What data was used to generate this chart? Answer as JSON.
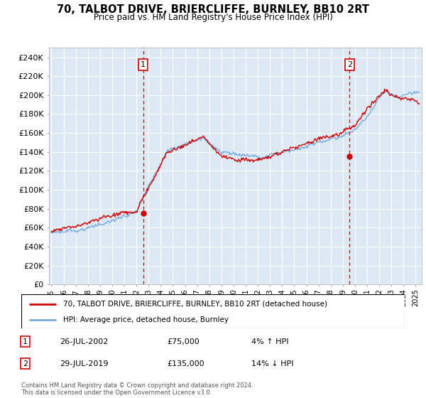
{
  "title": "70, TALBOT DRIVE, BRIERCLIFFE, BURNLEY, BB10 2RT",
  "subtitle": "Price paid vs. HM Land Registry's House Price Index (HPI)",
  "ylabel_ticks": [
    "£0",
    "£20K",
    "£40K",
    "£60K",
    "£80K",
    "£100K",
    "£120K",
    "£140K",
    "£160K",
    "£180K",
    "£200K",
    "£220K",
    "£240K"
  ],
  "ylim": [
    0,
    250000
  ],
  "yticks": [
    0,
    20000,
    40000,
    60000,
    80000,
    100000,
    120000,
    140000,
    160000,
    180000,
    200000,
    220000,
    240000
  ],
  "xlim_start": 1994.8,
  "xlim_end": 2025.5,
  "sale1_date": 2002.56,
  "sale1_price": 75000,
  "sale1_label": "1",
  "sale2_date": 2019.56,
  "sale2_price": 135000,
  "sale2_label": "2",
  "legend_line1": "70, TALBOT DRIVE, BRIERCLIFFE, BURNLEY, BB10 2RT (detached house)",
  "legend_line2": "HPI: Average price, detached house, Burnley",
  "footer": "Contains HM Land Registry data © Crown copyright and database right 2024.\nThis data is licensed under the Open Government Licence v3.0.",
  "hpi_color": "#7aabdc",
  "price_color": "#cc0000",
  "plot_bg": "#dce9f5",
  "grid_color": "#ffffff",
  "sale_marker_color": "#cc0000",
  "dashed_line_color": "#cc0000",
  "ann1_date": "26-JUL-2002",
  "ann1_price": "£75,000",
  "ann1_hpi": "4% ↑ HPI",
  "ann2_date": "29-JUL-2019",
  "ann2_price": "£135,000",
  "ann2_hpi": "14% ↓ HPI"
}
